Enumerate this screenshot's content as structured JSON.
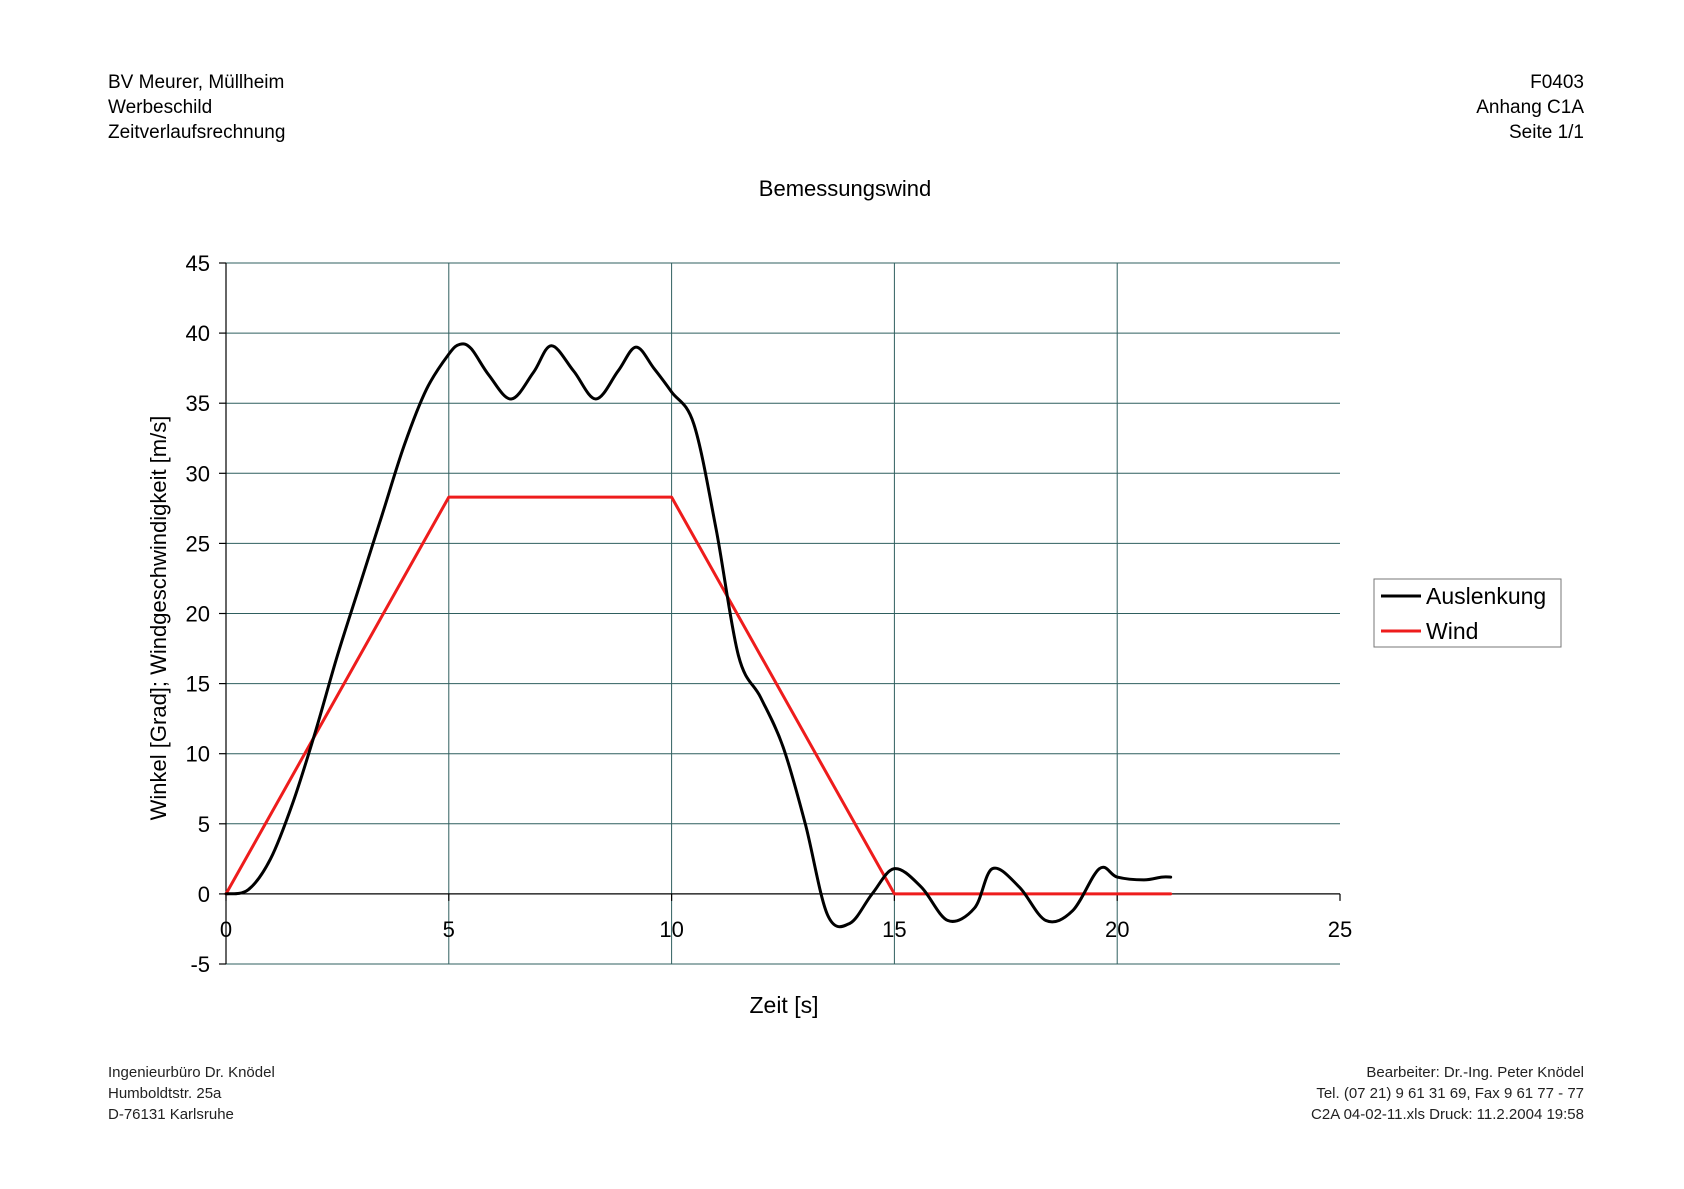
{
  "header": {
    "left": [
      "BV Meurer, Müllheim",
      "Werbeschild",
      "Zeitverlaufsrechnung"
    ],
    "right": [
      "F0403",
      "Anhang C1A",
      "Seite 1/1"
    ]
  },
  "footer": {
    "left": [
      "Ingenieurbüro Dr. Knödel",
      "Humboldtstr. 25a",
      "D-76131 Karlsruhe"
    ],
    "right": [
      "Bearbeiter: Dr.-Ing. Peter Knödel",
      "Tel. (07 21) 9 61 31 69, Fax 9 61 77 - 77",
      "C2A 04-02-11.xls Druck: 11.2.2004 19:58"
    ]
  },
  "chart_data": {
    "type": "line",
    "title": "Bemessungswind",
    "xlabel": "Zeit [s]",
    "ylabel": "Winkel [Grad]; Windgeschwindigkeit [m/s]",
    "xlim": [
      0,
      25
    ],
    "ylim": [
      -5,
      45
    ],
    "xticks": [
      0,
      5,
      10,
      15,
      20,
      25
    ],
    "yticks": [
      -5,
      0,
      5,
      10,
      15,
      20,
      25,
      30,
      35,
      40,
      45
    ],
    "grid": true,
    "legend_position": "right",
    "series": [
      {
        "name": "Auslenkung",
        "color": "#000000",
        "x": [
          0,
          0.5,
          1,
          1.5,
          2,
          2.5,
          3,
          3.5,
          4,
          4.5,
          5,
          5.25,
          5.5,
          5.9,
          6.4,
          6.9,
          7.3,
          7.8,
          8.3,
          8.8,
          9.2,
          9.6,
          10,
          10.5,
          11,
          11.5,
          12,
          12.5,
          13,
          13.5,
          14,
          14.5,
          15,
          15.6,
          16.2,
          16.8,
          17.2,
          17.8,
          18.4,
          19,
          19.6,
          20,
          20.6,
          21,
          21.2
        ],
        "y": [
          0,
          0.3,
          2.5,
          6.5,
          11.5,
          17,
          22,
          27,
          32,
          36,
          38.5,
          39.2,
          38.9,
          37,
          35.3,
          37.2,
          39.1,
          37.3,
          35.3,
          37.3,
          39,
          37.5,
          35.8,
          33.5,
          26,
          17,
          14,
          10.5,
          5,
          -1.5,
          -2.1,
          0,
          1.8,
          0.5,
          -1.9,
          -1,
          1.8,
          0.5,
          -1.9,
          -1.2,
          1.8,
          1.2,
          1.0,
          1.2,
          1.2
        ]
      },
      {
        "name": "Wind",
        "color": "#ee1c1c",
        "x": [
          0,
          5,
          10,
          15,
          21.2
        ],
        "y": [
          0,
          28.3,
          28.3,
          0,
          0
        ]
      }
    ]
  }
}
